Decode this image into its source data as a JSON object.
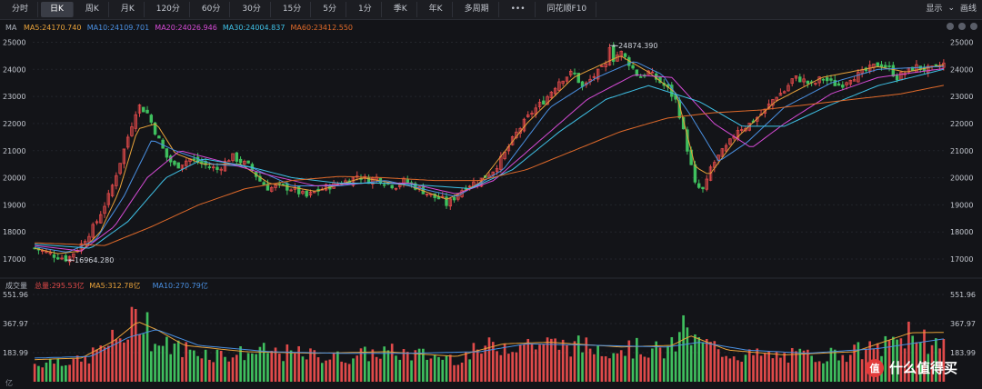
{
  "toolbar": {
    "tabs": [
      {
        "label": "分时",
        "active": false
      },
      {
        "label": "日K",
        "active": true
      },
      {
        "label": "周K",
        "active": false
      },
      {
        "label": "月K",
        "active": false
      },
      {
        "label": "120分",
        "active": false
      },
      {
        "label": "60分",
        "active": false
      },
      {
        "label": "30分",
        "active": false
      },
      {
        "label": "15分",
        "active": false
      },
      {
        "label": "5分",
        "active": false
      },
      {
        "label": "1分",
        "active": false
      },
      {
        "label": "季K",
        "active": false
      },
      {
        "label": "年K",
        "active": false
      },
      {
        "label": "多周期",
        "active": false
      }
    ],
    "more_label": "•••",
    "f10_label": "同花顺F10",
    "display_label": "显示",
    "draw_label": "画线"
  },
  "watermark": "什么值得买",
  "colors": {
    "up": "#e04a4a",
    "down": "#3fbf5e",
    "ma5": "#e8a23a",
    "ma10": "#4a90e2",
    "ma20": "#d64bd6",
    "ma30": "#3fc1e6",
    "ma60": "#e06a2a",
    "grid": "#23252b"
  },
  "chart_data": [
    {
      "type": "candlestick",
      "panel": "price",
      "indicator_label": "MA",
      "ma_legend": [
        {
          "name": "MA5",
          "value": "24170.740"
        },
        {
          "name": "MA10",
          "value": "24109.701"
        },
        {
          "name": "MA20",
          "value": "24026.946"
        },
        {
          "name": "MA30",
          "value": "24004.837"
        },
        {
          "name": "MA60",
          "value": "23412.550"
        }
      ],
      "y_ticks": [
        "25000",
        "24000",
        "23000",
        "22000",
        "21000",
        "20000",
        "19000",
        "18000",
        "17000"
      ],
      "ylim": [
        16700,
        25250
      ],
      "annotations": [
        {
          "label": "24874.390",
          "value": 24874.39
        },
        {
          "label": "16964.280",
          "value": 16964.28
        }
      ],
      "num_bars": 235,
      "close_path": [
        [
          0,
          17400
        ],
        [
          8,
          17150
        ],
        [
          14,
          17000
        ],
        [
          20,
          17550
        ],
        [
          26,
          18300
        ],
        [
          32,
          19400
        ],
        [
          38,
          21000
        ],
        [
          44,
          22700
        ],
        [
          48,
          22400
        ],
        [
          52,
          21600
        ],
        [
          56,
          20800
        ],
        [
          60,
          20400
        ],
        [
          66,
          20700
        ],
        [
          72,
          20500
        ],
        [
          78,
          20300
        ],
        [
          84,
          20800
        ],
        [
          88,
          20600
        ],
        [
          92,
          20400
        ],
        [
          96,
          19900
        ],
        [
          100,
          19600
        ],
        [
          104,
          19700
        ],
        [
          110,
          19600
        ],
        [
          116,
          19300
        ],
        [
          120,
          19500
        ],
        [
          126,
          19700
        ],
        [
          130,
          19800
        ],
        [
          134,
          19900
        ],
        [
          138,
          20100
        ],
        [
          142,
          19900
        ],
        [
          146,
          20000
        ],
        [
          150,
          19800
        ],
        [
          154,
          19700
        ],
        [
          158,
          19900
        ],
        [
          162,
          19700
        ],
        [
          166,
          19500
        ],
        [
          170,
          19300
        ],
        [
          174,
          19200
        ],
        [
          176,
          19000
        ],
        [
          180,
          19350
        ],
        [
          184,
          19700
        ],
        [
          190,
          19900
        ],
        [
          196,
          20300
        ],
        [
          200,
          20800
        ],
        [
          206,
          21700
        ],
        [
          212,
          22400
        ],
        [
          218,
          22900
        ],
        [
          224,
          23600
        ],
        [
          230,
          23900
        ],
        [
          234,
          23300
        ],
        [
          238,
          23700
        ],
        [
          242,
          24000
        ],
        [
          246,
          24300
        ],
        [
          250,
          24650
        ],
        [
          254,
          24200
        ],
        [
          258,
          23700
        ],
        [
          262,
          23900
        ],
        [
          266,
          23600
        ],
        [
          270,
          23300
        ],
        [
          274,
          22800
        ],
        [
          278,
          21300
        ],
        [
          282,
          19700
        ],
        [
          286,
          19500
        ],
        [
          288,
          20300
        ],
        [
          292,
          20800
        ],
        [
          296,
          21200
        ],
        [
          300,
          21800
        ],
        [
          304,
          21900
        ],
        [
          308,
          22200
        ],
        [
          312,
          22500
        ],
        [
          316,
          23000
        ],
        [
          320,
          23200
        ],
        [
          324,
          23700
        ],
        [
          328,
          23600
        ],
        [
          332,
          23400
        ],
        [
          336,
          23700
        ],
        [
          340,
          23500
        ],
        [
          344,
          23400
        ],
        [
          348,
          23700
        ],
        [
          352,
          23800
        ],
        [
          356,
          24000
        ],
        [
          360,
          24200
        ],
        [
          364,
          24100
        ],
        [
          368,
          23700
        ],
        [
          372,
          23900
        ],
        [
          376,
          24100
        ],
        [
          380,
          24000
        ],
        [
          384,
          24000
        ],
        [
          388,
          24200
        ]
      ],
      "ma_paths": {
        "MA5": [
          [
            0,
            17400
          ],
          [
            10,
            17200
          ],
          [
            20,
            17300
          ],
          [
            28,
            18000
          ],
          [
            36,
            19500
          ],
          [
            44,
            21800
          ],
          [
            52,
            22000
          ],
          [
            60,
            20900
          ],
          [
            72,
            20500
          ],
          [
            88,
            20500
          ],
          [
            100,
            19800
          ],
          [
            120,
            19500
          ],
          [
            140,
            20000
          ],
          [
            160,
            19700
          ],
          [
            176,
            19200
          ],
          [
            190,
            19800
          ],
          [
            210,
            22000
          ],
          [
            230,
            23700
          ],
          [
            250,
            24500
          ],
          [
            262,
            23900
          ],
          [
            274,
            23100
          ],
          [
            282,
            20400
          ],
          [
            288,
            20100
          ],
          [
            300,
            21500
          ],
          [
            316,
            22800
          ],
          [
            336,
            23700
          ],
          [
            360,
            24100
          ],
          [
            372,
            23900
          ],
          [
            388,
            24170
          ]
        ],
        "MA10": [
          [
            0,
            17450
          ],
          [
            14,
            17250
          ],
          [
            26,
            17700
          ],
          [
            38,
            19300
          ],
          [
            50,
            21400
          ],
          [
            60,
            21000
          ],
          [
            76,
            20500
          ],
          [
            92,
            20400
          ],
          [
            110,
            19700
          ],
          [
            130,
            19700
          ],
          [
            150,
            19900
          ],
          [
            170,
            19500
          ],
          [
            180,
            19300
          ],
          [
            200,
            20300
          ],
          [
            220,
            22600
          ],
          [
            240,
            23700
          ],
          [
            256,
            24300
          ],
          [
            268,
            23800
          ],
          [
            280,
            22300
          ],
          [
            292,
            20600
          ],
          [
            304,
            21300
          ],
          [
            320,
            22600
          ],
          [
            340,
            23500
          ],
          [
            360,
            24000
          ],
          [
            388,
            24110
          ]
        ],
        "MA20": [
          [
            0,
            17500
          ],
          [
            20,
            17300
          ],
          [
            34,
            18200
          ],
          [
            48,
            20000
          ],
          [
            62,
            21000
          ],
          [
            80,
            20600
          ],
          [
            100,
            20100
          ],
          [
            120,
            19700
          ],
          [
            140,
            19800
          ],
          [
            160,
            19800
          ],
          [
            180,
            19400
          ],
          [
            196,
            19900
          ],
          [
            216,
            21400
          ],
          [
            236,
            22900
          ],
          [
            256,
            23800
          ],
          [
            272,
            23700
          ],
          [
            290,
            22000
          ],
          [
            306,
            21100
          ],
          [
            320,
            22000
          ],
          [
            340,
            23100
          ],
          [
            360,
            23700
          ],
          [
            388,
            24030
          ]
        ],
        "MA30": [
          [
            0,
            17550
          ],
          [
            24,
            17400
          ],
          [
            40,
            18400
          ],
          [
            56,
            20000
          ],
          [
            72,
            20700
          ],
          [
            92,
            20400
          ],
          [
            110,
            20000
          ],
          [
            130,
            19800
          ],
          [
            150,
            19800
          ],
          [
            170,
            19700
          ],
          [
            186,
            19600
          ],
          [
            204,
            20300
          ],
          [
            224,
            21700
          ],
          [
            244,
            22900
          ],
          [
            262,
            23400
          ],
          [
            284,
            22800
          ],
          [
            302,
            21900
          ],
          [
            320,
            21900
          ],
          [
            340,
            22700
          ],
          [
            360,
            23400
          ],
          [
            388,
            24000
          ]
        ],
        "MA60": [
          [
            0,
            17600
          ],
          [
            30,
            17500
          ],
          [
            50,
            18200
          ],
          [
            70,
            19000
          ],
          [
            90,
            19600
          ],
          [
            110,
            19900
          ],
          [
            130,
            20050
          ],
          [
            150,
            20000
          ],
          [
            170,
            19900
          ],
          [
            190,
            19900
          ],
          [
            210,
            20300
          ],
          [
            230,
            21000
          ],
          [
            250,
            21700
          ],
          [
            270,
            22200
          ],
          [
            290,
            22400
          ],
          [
            310,
            22500
          ],
          [
            330,
            22700
          ],
          [
            350,
            22900
          ],
          [
            370,
            23100
          ],
          [
            388,
            23410
          ]
        ]
      }
    },
    {
      "type": "bar",
      "panel": "volume",
      "indicator_label": "成交量",
      "volume_legend": [
        {
          "name": "总量",
          "value": "295.53亿"
        },
        {
          "name": "MA5",
          "value": "312.78亿"
        },
        {
          "name": "MA10",
          "value": "270.79亿"
        }
      ],
      "y_ticks": [
        "551.96",
        "367.97",
        "183.99"
      ],
      "unit_label": "亿",
      "ylim": [
        0,
        551.96
      ],
      "volume_path": [
        [
          0,
          120
        ],
        [
          10,
          150
        ],
        [
          20,
          130
        ],
        [
          30,
          240
        ],
        [
          40,
          330
        ],
        [
          44,
          480
        ],
        [
          48,
          330
        ],
        [
          52,
          250
        ],
        [
          60,
          230
        ],
        [
          80,
          180
        ],
        [
          100,
          200
        ],
        [
          130,
          160
        ],
        [
          150,
          200
        ],
        [
          170,
          170
        ],
        [
          180,
          160
        ],
        [
          196,
          240
        ],
        [
          206,
          260
        ],
        [
          220,
          250
        ],
        [
          240,
          230
        ],
        [
          260,
          220
        ],
        [
          270,
          200
        ],
        [
          276,
          290
        ],
        [
          282,
          270
        ],
        [
          300,
          180
        ],
        [
          320,
          170
        ],
        [
          340,
          180
        ],
        [
          360,
          220
        ],
        [
          372,
          290
        ],
        [
          380,
          240
        ],
        [
          388,
          290
        ]
      ],
      "volume_spikes": [
        [
          43,
          460
        ],
        [
          48,
          440
        ],
        [
          277,
          420
        ],
        [
          373,
          380
        ],
        [
          379,
          330
        ]
      ],
      "vol_ma5": [
        [
          0,
          140
        ],
        [
          20,
          150
        ],
        [
          34,
          260
        ],
        [
          44,
          380
        ],
        [
          52,
          330
        ],
        [
          64,
          230
        ],
        [
          90,
          190
        ],
        [
          120,
          180
        ],
        [
          150,
          190
        ],
        [
          180,
          160
        ],
        [
          200,
          240
        ],
        [
          220,
          250
        ],
        [
          250,
          220
        ],
        [
          272,
          230
        ],
        [
          280,
          290
        ],
        [
          296,
          200
        ],
        [
          320,
          170
        ],
        [
          350,
          190
        ],
        [
          374,
          310
        ],
        [
          388,
          312
        ]
      ],
      "vol_ma10": [
        [
          0,
          150
        ],
        [
          24,
          160
        ],
        [
          40,
          280
        ],
        [
          52,
          330
        ],
        [
          70,
          230
        ],
        [
          100,
          190
        ],
        [
          130,
          180
        ],
        [
          160,
          180
        ],
        [
          190,
          190
        ],
        [
          210,
          240
        ],
        [
          240,
          230
        ],
        [
          270,
          220
        ],
        [
          284,
          250
        ],
        [
          304,
          200
        ],
        [
          330,
          180
        ],
        [
          360,
          210
        ],
        [
          388,
          271
        ]
      ]
    }
  ]
}
